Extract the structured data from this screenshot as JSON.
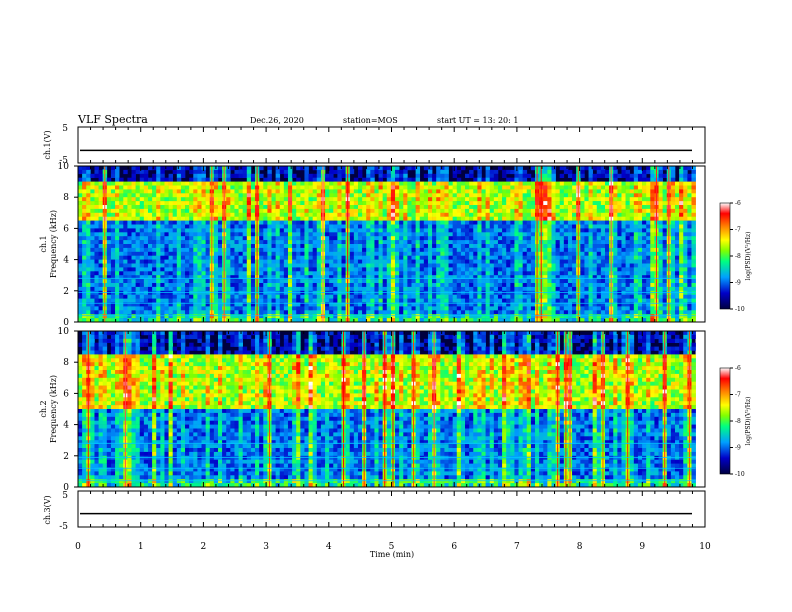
{
  "header": {
    "title": "VLF Spectra",
    "date": "Dec.26, 2020",
    "station": "station=MOS",
    "start": "start  UT =   13: 20: 1"
  },
  "chart_data": [
    {
      "type": "line",
      "panel": "ch1-waveform",
      "ylabel": "ch.1(V)",
      "ylim": [
        -5,
        5
      ],
      "yticks": [
        "5",
        "-5"
      ],
      "xlim": [
        0,
        10
      ],
      "series": [
        {
          "values": [
            -1.5,
            -1.5
          ]
        }
      ]
    },
    {
      "type": "heatmap",
      "panel": "ch1-spectrogram",
      "ylabel_line1": "ch.1",
      "ylabel_line2": "Frequency (kHz)",
      "ylim": [
        0,
        10
      ],
      "yticks": [
        "0",
        "2",
        "4",
        "6",
        "8",
        "10"
      ],
      "xlim": [
        0,
        9.85
      ],
      "dominant_band_khz": [
        6.5,
        9.0
      ],
      "colorbar": {
        "label": "log(PSD)(V²/Hz)",
        "ticks": [
          "-6",
          "-7",
          "-8",
          "-9",
          "-10"
        ],
        "range": [
          -10,
          -6
        ]
      }
    },
    {
      "type": "heatmap",
      "panel": "ch2-spectrogram",
      "ylabel_line1": "ch.2",
      "ylabel_line2": "Frequency (kHz)",
      "ylim": [
        0,
        10
      ],
      "yticks": [
        "0",
        "2",
        "4",
        "6",
        "8",
        "10"
      ],
      "xlim": [
        0,
        9.85
      ],
      "dominant_band_khz": [
        5.0,
        8.5
      ],
      "colorbar": {
        "label": "log(PSD)(V²/Hz)",
        "ticks": [
          "-6",
          "-7",
          "-8",
          "-9",
          "-10"
        ],
        "range": [
          -10,
          -6
        ]
      }
    },
    {
      "type": "line",
      "panel": "ch3-waveform",
      "ylabel": "ch.3(V)",
      "ylim": [
        -5,
        5
      ],
      "yticks": [
        "5",
        "-5"
      ],
      "xlim": [
        0,
        10
      ],
      "series": [
        {
          "values": [
            -1.3,
            -1.3
          ]
        }
      ]
    }
  ],
  "xaxis": {
    "label": "Time  (min)",
    "ticks": [
      "0",
      "1",
      "2",
      "3",
      "4",
      "5",
      "6",
      "7",
      "8",
      "9",
      "10"
    ]
  },
  "colors": {
    "background": "#ffffff",
    "axis": "#000000",
    "colormap": [
      "#000040",
      "#0000c8",
      "#00a0ff",
      "#00ff80",
      "#80ff00",
      "#ffff00",
      "#ff8000",
      "#ff0000",
      "#ffffff"
    ]
  }
}
